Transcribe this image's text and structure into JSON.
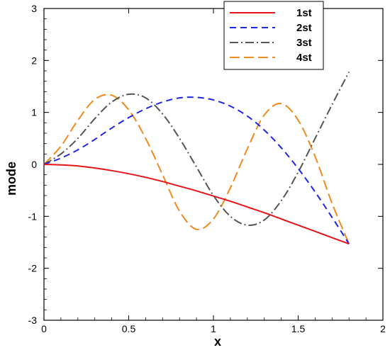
{
  "chart_data": {
    "type": "line",
    "xlabel": "x",
    "ylabel": "mode",
    "xlim": [
      0,
      2
    ],
    "ylim": [
      -3,
      3
    ],
    "xticks": [
      0,
      0.5,
      1,
      1.5,
      2
    ],
    "xtick_labels": [
      "0",
      "0.5",
      "1",
      "1.5",
      "2"
    ],
    "yticks": [
      -3,
      -2,
      -1,
      0,
      1,
      2,
      3
    ],
    "ytick_labels": [
      "-3",
      "-2",
      "-1",
      "0",
      "1",
      "2",
      "3"
    ],
    "grid": false,
    "legend_position": "top-right",
    "series": [
      {
        "name": "1st",
        "color": "#e8141b",
        "dash": "solid",
        "x": [
          0,
          0.1,
          0.2,
          0.3,
          0.4,
          0.5,
          0.6,
          0.7,
          0.8,
          0.9,
          1.0,
          1.1,
          1.2,
          1.3,
          1.4,
          1.5,
          1.6,
          1.7,
          1.8
        ],
        "y": [
          0,
          -0.01,
          -0.03,
          -0.07,
          -0.12,
          -0.18,
          -0.25,
          -0.33,
          -0.42,
          -0.51,
          -0.61,
          -0.71,
          -0.82,
          -0.93,
          -1.05,
          -1.17,
          -1.29,
          -1.41,
          -1.53
        ]
      },
      {
        "name": "2st",
        "color": "#1f24e6",
        "dash": "dashed",
        "x": [
          0,
          0.1,
          0.2,
          0.3,
          0.4,
          0.5,
          0.6,
          0.7,
          0.8,
          0.9,
          1.0,
          1.1,
          1.2,
          1.3,
          1.4,
          1.5,
          1.6,
          1.7,
          1.8
        ],
        "y": [
          0,
          0.12,
          0.28,
          0.48,
          0.7,
          0.9,
          1.07,
          1.2,
          1.28,
          1.29,
          1.24,
          1.12,
          0.93,
          0.66,
          0.32,
          -0.08,
          -0.53,
          -1.02,
          -1.53
        ]
      },
      {
        "name": "3st",
        "color": "#555555",
        "dash": "dashdot",
        "x": [
          0,
          0.1,
          0.2,
          0.3,
          0.4,
          0.5,
          0.6,
          0.7,
          0.8,
          0.9,
          1.0,
          1.1,
          1.2,
          1.3,
          1.4,
          1.5,
          1.6,
          1.7,
          1.8
        ],
        "y": [
          0,
          0.2,
          0.5,
          0.88,
          1.2,
          1.35,
          1.28,
          0.97,
          0.5,
          -0.05,
          -0.6,
          -1.0,
          -1.17,
          -1.07,
          -0.7,
          -0.15,
          0.5,
          1.15,
          1.78
        ]
      },
      {
        "name": "4st",
        "color": "#f08a1c",
        "dash": "longdash",
        "x": [
          0,
          0.1,
          0.2,
          0.3,
          0.4,
          0.5,
          0.6,
          0.7,
          0.8,
          0.9,
          1.0,
          1.1,
          1.2,
          1.3,
          1.4,
          1.5,
          1.6,
          1.7,
          1.8
        ],
        "y": [
          0,
          0.35,
          0.85,
          1.25,
          1.33,
          1.05,
          0.5,
          -0.2,
          -0.9,
          -1.25,
          -1.05,
          -0.45,
          0.3,
          0.95,
          1.17,
          0.85,
          0.15,
          -0.75,
          -1.53
        ]
      }
    ]
  }
}
